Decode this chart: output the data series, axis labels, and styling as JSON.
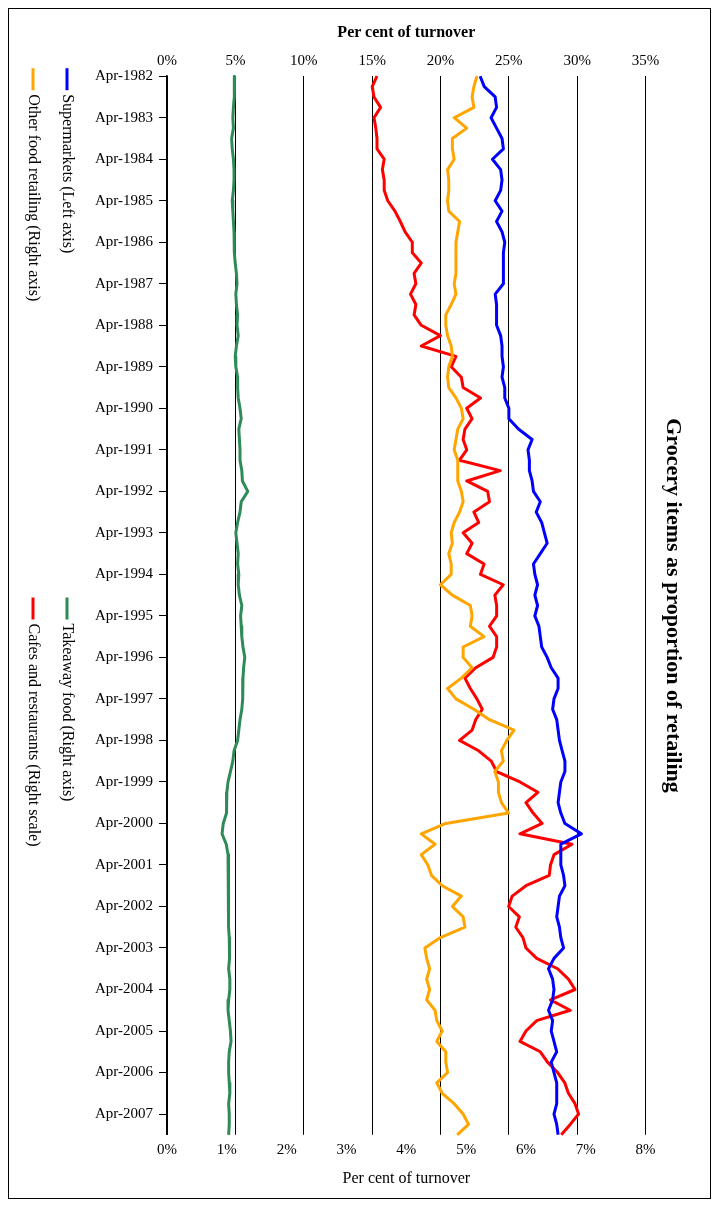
{
  "chart_data": {
    "type": "line",
    "orientation": "horizontal",
    "title": "Grocery items as proportion of retailing",
    "xlabel": "Per cent of turnover",
    "x2label": "Per cent of turnover",
    "categories": [
      "Apr-1982",
      null,
      null,
      null,
      "Apr-1983",
      null,
      null,
      null,
      "Apr-1984",
      null,
      null,
      null,
      "Apr-1985",
      null,
      null,
      null,
      "Apr-1986",
      null,
      null,
      null,
      "Apr-1987",
      null,
      null,
      null,
      "Apr-1988",
      null,
      null,
      null,
      "Apr-1989",
      null,
      null,
      null,
      "Apr-1990",
      null,
      null,
      null,
      "Apr-1991",
      null,
      null,
      null,
      "Apr-1992",
      null,
      null,
      null,
      "Apr-1993",
      null,
      null,
      null,
      "Apr-1994",
      null,
      null,
      null,
      "Apr-1995",
      null,
      null,
      null,
      "Apr-1996",
      null,
      null,
      null,
      "Apr-1997",
      null,
      null,
      null,
      "Apr-1998",
      null,
      null,
      null,
      "Apr-1999",
      null,
      null,
      null,
      "Apr-2000",
      null,
      null,
      null,
      "Apr-2001",
      null,
      null,
      null,
      "Apr-2002",
      null,
      null,
      null,
      "Apr-2003",
      null,
      null,
      null,
      "Apr-2004",
      null,
      null,
      null,
      "Apr-2005",
      null,
      null,
      null,
      "Apr-2006",
      null,
      null,
      null,
      "Apr-2007",
      null,
      null
    ],
    "series": [
      {
        "name": "Supermarkets (Left axis)",
        "color": "#0000ff",
        "values": [
          22.9,
          23.2,
          24.0,
          24.1,
          23.7,
          24.1,
          24.5,
          24.6,
          23.8,
          24.4,
          24.5,
          24.4,
          24.0,
          24.5,
          24.1,
          24.5,
          24.7,
          24.6,
          24.6,
          24.6,
          24.6,
          24.0,
          24.1,
          24.1,
          24.1,
          24.4,
          24.5,
          24.5,
          24.6,
          24.5,
          24.7,
          24.7,
          25.0,
          25.0,
          25.7,
          26.7,
          26.4,
          26.5,
          26.5,
          26.7,
          26.8,
          27.3,
          27.0,
          27.4,
          27.6,
          27.8,
          27.3,
          26.8,
          26.9,
          27.1,
          26.9,
          27.1,
          26.9,
          27.2,
          27.3,
          27.4,
          27.8,
          28.1,
          28.6,
          28.6,
          28.3,
          28.2,
          28.5,
          28.6,
          28.7,
          28.9,
          29.1,
          29.1,
          28.8,
          28.7,
          28.6,
          28.8,
          29.1,
          30.3,
          28.8,
          28.8,
          28.8,
          29.0,
          29.1,
          28.7,
          28.6,
          28.5,
          28.7,
          28.8,
          29.0,
          28.3,
          27.9,
          28.2,
          28.3,
          28.2,
          27.9,
          28.2,
          28.1,
          28.3,
          28.5,
          28.1,
          28.3,
          28.5,
          28.5,
          28.5,
          28.3,
          28.5,
          28.6
        ]
      },
      {
        "name": "Other food retailing (Right axis)",
        "color": "#ffa500",
        "axis": "x2",
        "values": [
          5.18,
          5.13,
          5.1,
          5.13,
          4.8,
          5.01,
          4.77,
          4.77,
          4.8,
          4.69,
          4.71,
          4.71,
          4.69,
          4.71,
          4.89,
          4.86,
          4.83,
          4.83,
          4.83,
          4.83,
          4.8,
          4.83,
          4.75,
          4.66,
          4.66,
          4.69,
          4.75,
          4.77,
          4.71,
          4.69,
          4.71,
          4.83,
          4.92,
          4.95,
          4.86,
          4.83,
          4.8,
          4.86,
          4.86,
          4.86,
          4.92,
          4.95,
          4.89,
          4.8,
          4.75,
          4.77,
          4.71,
          4.75,
          4.75,
          4.57,
          4.77,
          5.07,
          5.1,
          5.07,
          5.3,
          4.95,
          4.95,
          5.1,
          4.92,
          4.69,
          4.83,
          5.13,
          5.39,
          5.8,
          5.68,
          5.59,
          5.62,
          5.48,
          5.54,
          5.54,
          5.59,
          5.71,
          4.66,
          4.25,
          4.48,
          4.25,
          4.36,
          4.42,
          4.6,
          4.92,
          4.77,
          4.95,
          4.98,
          4.57,
          4.31,
          4.34,
          4.39,
          4.34,
          4.39,
          4.34,
          4.48,
          4.51,
          4.6,
          4.51,
          4.66,
          4.66,
          4.69,
          4.51,
          4.6,
          4.8,
          4.95,
          5.04,
          4.85
        ]
      },
      {
        "name": "Takeaway food (Right axis)",
        "color": "#2e8b57",
        "axis": "x2",
        "values": [
          1.13,
          1.12,
          1.13,
          1.11,
          1.1,
          1.11,
          1.08,
          1.09,
          1.11,
          1.12,
          1.12,
          1.11,
          1.09,
          1.1,
          1.11,
          1.12,
          1.12,
          1.13,
          1.14,
          1.16,
          1.17,
          1.15,
          1.16,
          1.18,
          1.17,
          1.19,
          1.16,
          1.14,
          1.15,
          1.18,
          1.18,
          1.19,
          1.22,
          1.24,
          1.2,
          1.21,
          1.22,
          1.22,
          1.25,
          1.26,
          1.35,
          1.24,
          1.22,
          1.18,
          1.15,
          1.17,
          1.19,
          1.18,
          1.2,
          1.19,
          1.21,
          1.25,
          1.23,
          1.24,
          1.25,
          1.27,
          1.3,
          1.28,
          1.27,
          1.26,
          1.27,
          1.25,
          1.22,
          1.2,
          1.18,
          1.12,
          1.1,
          1.06,
          1.02,
          1.0,
          1.0,
          0.99,
          0.94,
          0.92,
          0.99,
          1.02,
          1.03,
          1.03,
          1.03,
          1.03,
          1.03,
          1.03,
          1.02,
          1.04,
          1.05,
          1.04,
          1.03,
          1.05,
          1.05,
          1.03,
          1.02,
          1.04,
          1.06,
          1.07,
          1.04,
          1.03,
          1.03,
          1.04,
          1.05,
          1.03,
          1.04,
          1.04,
          1.03
        ]
      },
      {
        "name": "Cafes and restaurants (Right scale)",
        "color": "#ff0000",
        "axis": "x2",
        "values": [
          3.51,
          3.43,
          3.46,
          3.57,
          3.46,
          3.49,
          3.51,
          3.51,
          3.63,
          3.6,
          3.63,
          3.63,
          3.69,
          3.81,
          3.9,
          3.98,
          4.1,
          4.1,
          4.25,
          4.13,
          4.16,
          4.07,
          4.16,
          4.13,
          4.25,
          4.57,
          4.25,
          4.83,
          4.75,
          4.92,
          4.95,
          5.24,
          5.01,
          5.1,
          4.98,
          4.95,
          5.01,
          4.89,
          5.57,
          5.01,
          5.36,
          5.39,
          5.13,
          5.21,
          4.95,
          5.1,
          5.01,
          5.3,
          5.24,
          5.62,
          5.48,
          5.51,
          5.51,
          5.39,
          5.51,
          5.51,
          5.45,
          5.16,
          4.98,
          5.07,
          5.18,
          5.27,
          5.16,
          5.1,
          4.89,
          5.21,
          5.42,
          5.51,
          5.9,
          6.2,
          6.0,
          6.12,
          6.27,
          5.9,
          6.77,
          6.47,
          6.41,
          6.39,
          6.0,
          5.77,
          5.71,
          5.89,
          5.83,
          5.95,
          6.0,
          6.18,
          6.53,
          6.71,
          6.82,
          6.41,
          6.74,
          6.18,
          6.0,
          5.9,
          6.24,
          6.36,
          6.53,
          6.65,
          6.71,
          6.82,
          6.88,
          6.74,
          6.59
        ]
      }
    ],
    "xlim": [
      0,
      35
    ],
    "xticks": [
      {
        "value": 0,
        "label": "0%"
      },
      {
        "value": 5,
        "label": "5%"
      },
      {
        "value": 10,
        "label": "10%"
      },
      {
        "value": 15,
        "label": "15%"
      },
      {
        "value": 20,
        "label": "20%"
      },
      {
        "value": 25,
        "label": "25%"
      },
      {
        "value": 30,
        "label": "30%"
      },
      {
        "value": 35,
        "label": "35%"
      }
    ],
    "x2lim": [
      0,
      8
    ],
    "x2ticks": [
      {
        "value": 0,
        "label": "0%"
      },
      {
        "value": 1,
        "label": "1%"
      },
      {
        "value": 2,
        "label": "2%"
      },
      {
        "value": 3,
        "label": "3%"
      },
      {
        "value": 4,
        "label": "4%"
      },
      {
        "value": 5,
        "label": "5%"
      },
      {
        "value": 6,
        "label": "6%"
      },
      {
        "value": 7,
        "label": "7%"
      },
      {
        "value": 8,
        "label": "8%"
      }
    ],
    "grid": "x",
    "legend": "left",
    "marker": "none",
    "line_style": "solid"
  }
}
